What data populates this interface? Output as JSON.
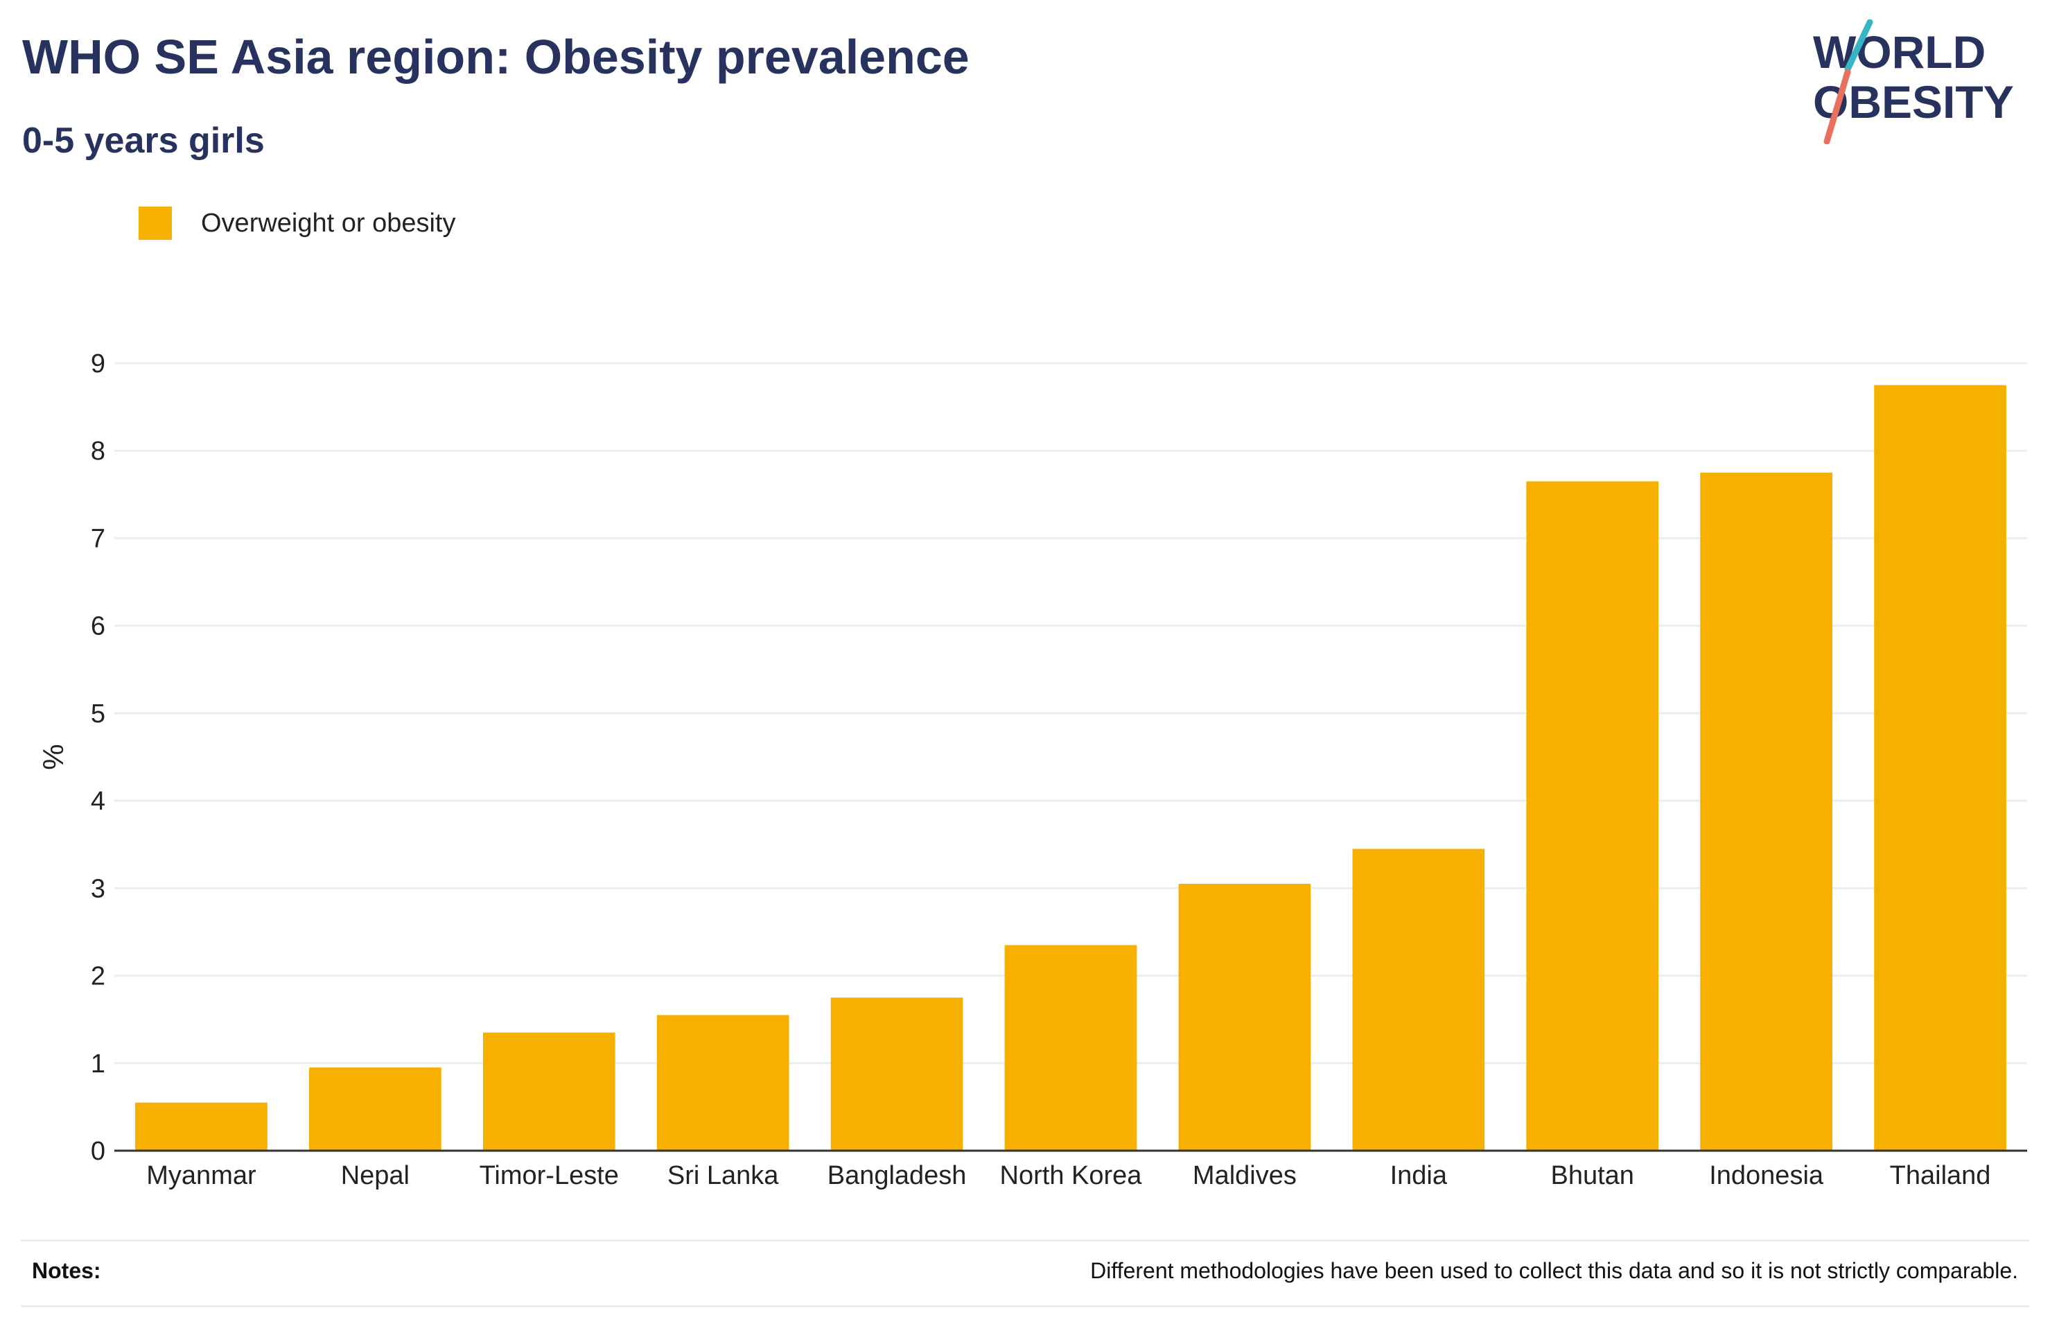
{
  "header": {
    "title": "WHO SE Asia region: Obesity prevalence",
    "subtitle": "0-5 years girls"
  },
  "logo": {
    "line1": "WORLD",
    "line2": "OBESITY",
    "colors": {
      "text": "#28325f",
      "slash_top": "#36b6c4",
      "slash_bottom": "#e8705f"
    }
  },
  "legend": {
    "label": "Overweight or obesity",
    "color": "#f6b000"
  },
  "chart_data": {
    "type": "bar",
    "categories": [
      "Myanmar",
      "Nepal",
      "Timor-Leste",
      "Sri Lanka",
      "Bangladesh",
      "North Korea",
      "Maldives",
      "India",
      "Bhutan",
      "Indonesia",
      "Thailand"
    ],
    "series": [
      {
        "name": "Overweight or obesity",
        "values": [
          0.55,
          0.95,
          1.35,
          1.55,
          1.75,
          2.35,
          3.05,
          3.45,
          7.65,
          7.75,
          8.75
        ],
        "color": "#f6b000"
      }
    ],
    "ylabel": "%",
    "ylim": [
      0,
      9
    ],
    "yticks": [
      "0",
      "1",
      "2",
      "3",
      "4",
      "5",
      "6",
      "7",
      "8",
      "9"
    ],
    "grid": true,
    "legend_position": "top-left"
  },
  "notes": {
    "label": "Notes:",
    "text": "Different methodologies have been used to collect this data and so it is not strictly comparable."
  }
}
